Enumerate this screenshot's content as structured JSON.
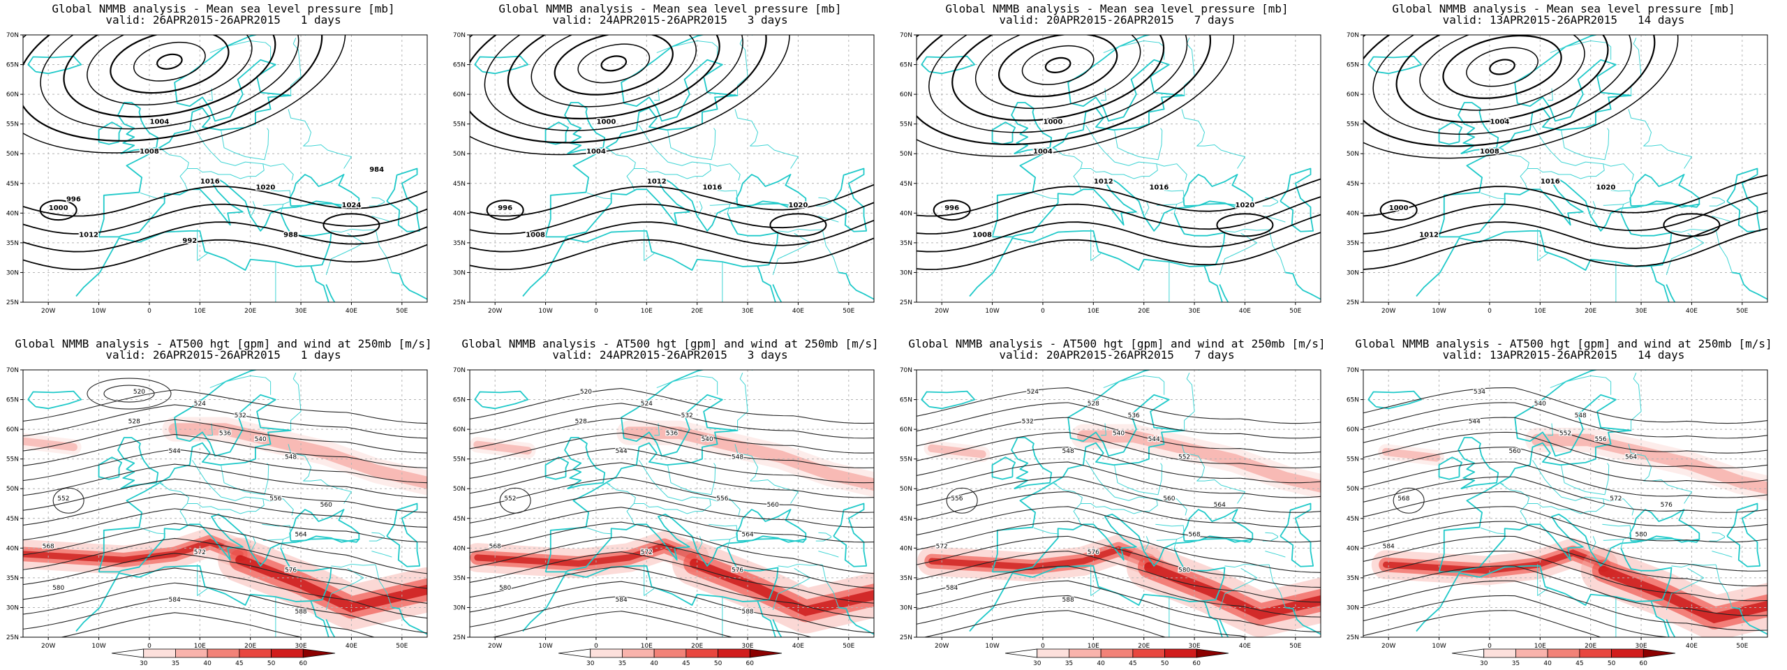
{
  "panels": [
    {
      "title": "Global NMMB analysis - Mean sea level pressure [mb]",
      "valid": "valid: 26APR2015-26APR2015   1 days",
      "kind": "mslp"
    },
    {
      "title": "Global NMMB analysis - Mean sea level pressure [mb]",
      "valid": "valid: 24APR2015-26APR2015   3 days",
      "kind": "mslp"
    },
    {
      "title": "Global NMMB analysis - Mean sea level pressure [mb]",
      "valid": "valid: 20APR2015-26APR2015   7 days",
      "kind": "mslp"
    },
    {
      "title": "Global NMMB analysis - Mean sea level pressure [mb]",
      "valid": "valid: 13APR2015-26APR2015   14 days",
      "kind": "mslp"
    },
    {
      "title": "Global NMMB analysis - AT500 hgt [gpm] and wind at 250mb [m/s]",
      "valid": "valid: 26APR2015-26APR2015   1 days",
      "kind": "hgt"
    },
    {
      "title": "Global NMMB analysis - AT500 hgt [gpm] and wind at 250mb [m/s]",
      "valid": "valid: 24APR2015-26APR2015   3 days",
      "kind": "hgt"
    },
    {
      "title": "Global NMMB analysis - AT500 hgt [gpm] and wind at 250mb [m/s]",
      "valid": "valid: 20APR2015-26APR2015   7 days",
      "kind": "hgt"
    },
    {
      "title": "Global NMMB analysis - AT500 hgt [gpm] and wind at 250mb [m/s]",
      "valid": "valid: 13APR2015-26APR2015   14 days",
      "kind": "hgt"
    }
  ],
  "chart_data": {
    "type": "heatmap",
    "map_extent": {
      "lon": [
        -25,
        55
      ],
      "lat": [
        25,
        70
      ]
    },
    "lat_ticks": [
      "25N",
      "30N",
      "35N",
      "40N",
      "45N",
      "50N",
      "55N",
      "60N",
      "65N",
      "70N"
    ],
    "lon_ticks": [
      "20W",
      "10W",
      "0",
      "10E",
      "20E",
      "30E",
      "40E",
      "50E"
    ],
    "mslp_contour_labels": [
      [
        "1000",
        "1004",
        "1008",
        "1012",
        "1016",
        "1020",
        "1024",
        "996",
        "992",
        "988",
        "984"
      ],
      [
        "996",
        "1000",
        "1004",
        "1008",
        "1012",
        "1016",
        "1020"
      ],
      [
        "996",
        "1000",
        "1004",
        "1008",
        "1012",
        "1016",
        "1020"
      ],
      [
        "1000",
        "1004",
        "1008",
        "1012",
        "1016",
        "1020"
      ]
    ],
    "hgt_contour_labels": [
      [
        "520",
        "524",
        "528",
        "532",
        "536",
        "540",
        "544",
        "548",
        "552",
        "556",
        "560",
        "564",
        "568",
        "572",
        "576",
        "580",
        "584",
        "588"
      ],
      [
        "520",
        "524",
        "528",
        "532",
        "536",
        "540",
        "544",
        "548",
        "552",
        "556",
        "560",
        "564",
        "568",
        "572",
        "576",
        "580",
        "584",
        "588"
      ],
      [
        "524",
        "528",
        "532",
        "536",
        "540",
        "544",
        "548",
        "552",
        "556",
        "560",
        "564",
        "568",
        "572",
        "576",
        "580",
        "584",
        "588"
      ],
      [
        "534",
        "540",
        "544",
        "548",
        "552",
        "556",
        "560",
        "564",
        "568",
        "572",
        "576",
        "580",
        "584"
      ]
    ],
    "wind_colorbar": {
      "ticks": [
        "30",
        "35",
        "40",
        "45",
        "50",
        "60"
      ],
      "colors": [
        "#ffffff",
        "#fde0dc",
        "#f9b3ac",
        "#f28278",
        "#e8473f",
        "#d11c1c",
        "#8b0000"
      ]
    }
  }
}
